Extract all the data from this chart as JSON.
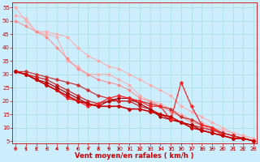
{
  "background_color": "#cceeff",
  "grid_color": "#aadddd",
  "xlabel": "Vent moyen/en rafales ( km/h )",
  "xlabel_color": "#cc0000",
  "xlabel_fontsize": 6,
  "tick_color": "#cc0000",
  "tick_fontsize": 5,
  "yticks": [
    5,
    10,
    15,
    20,
    25,
    30,
    35,
    40,
    45,
    50,
    55
  ],
  "xticks": [
    0,
    1,
    2,
    3,
    4,
    5,
    6,
    7,
    8,
    9,
    10,
    11,
    12,
    13,
    14,
    15,
    16,
    17,
    18,
    19,
    20,
    21,
    22,
    23
  ],
  "xlim": [
    -0.3,
    23.3
  ],
  "ylim": [
    4,
    57
  ],
  "lines": [
    {
      "x": [
        0,
        1,
        2,
        3,
        4,
        5,
        6,
        7,
        8,
        9,
        10,
        11,
        12,
        13,
        14,
        15,
        16,
        17,
        18,
        19,
        20,
        21,
        22,
        23
      ],
      "y": [
        55,
        50,
        46,
        46,
        45,
        44,
        40,
        37,
        35,
        33,
        32,
        30,
        28,
        26,
        24,
        22,
        18,
        16,
        14,
        12,
        10,
        8,
        7,
        6
      ],
      "color": "#ffaaaa",
      "lw": 0.7,
      "marker": "D",
      "ms": 1.5
    },
    {
      "x": [
        0,
        1,
        2,
        3,
        4,
        5,
        6,
        7,
        8,
        9,
        10,
        11,
        12,
        13,
        14,
        15,
        16,
        17,
        18,
        19,
        20,
        21,
        22,
        23
      ],
      "y": [
        52,
        51,
        46,
        45,
        44,
        35,
        33,
        30,
        30,
        30,
        28,
        26,
        22,
        20,
        19,
        17,
        15,
        13,
        12,
        10,
        9,
        8,
        7,
        6
      ],
      "color": "#ffaaaa",
      "lw": 0.7,
      "marker": "D",
      "ms": 1.5
    },
    {
      "x": [
        0,
        1,
        2,
        3,
        4,
        5,
        6,
        7,
        8,
        9,
        10,
        11,
        12,
        13,
        14,
        15,
        16,
        17,
        18,
        19,
        20,
        21,
        22,
        23
      ],
      "y": [
        50,
        48,
        46,
        44,
        40,
        36,
        32,
        30,
        28,
        27,
        26,
        24,
        21,
        20,
        18,
        16,
        14,
        12,
        11,
        9,
        8,
        7,
        6,
        5
      ],
      "color": "#ff8888",
      "lw": 0.7,
      "marker": "D",
      "ms": 1.5
    },
    {
      "x": [
        0,
        1,
        2,
        3,
        4,
        5,
        6,
        7,
        8,
        9,
        10,
        11,
        12,
        13,
        14,
        15,
        16,
        17,
        18,
        19,
        20,
        21,
        22,
        23
      ],
      "y": [
        31,
        31,
        30,
        29,
        28,
        27,
        26,
        24,
        22,
        21,
        20,
        20,
        20,
        19,
        18,
        17,
        14,
        13,
        11,
        10,
        8,
        7,
        6,
        5
      ],
      "color": "#cc3333",
      "lw": 0.9,
      "marker": "D",
      "ms": 1.8
    },
    {
      "x": [
        0,
        1,
        2,
        3,
        4,
        5,
        6,
        7,
        8,
        9,
        10,
        11,
        12,
        13,
        14,
        15,
        16,
        17,
        18,
        19,
        20,
        21,
        22,
        23
      ],
      "y": [
        31,
        30,
        29,
        28,
        26,
        24,
        22,
        20,
        19,
        20,
        20,
        20,
        18,
        17,
        15,
        13,
        12,
        11,
        10,
        9,
        8,
        7,
        6,
        5
      ],
      "color": "#cc2222",
      "lw": 0.9,
      "marker": "D",
      "ms": 1.8
    },
    {
      "x": [
        0,
        1,
        2,
        3,
        4,
        5,
        6,
        7,
        8,
        9,
        10,
        11,
        12,
        13,
        14,
        15,
        16,
        17,
        18,
        19,
        20,
        21,
        22,
        23
      ],
      "y": [
        31,
        30,
        28,
        27,
        25,
        23,
        21,
        19,
        18,
        20,
        21,
        21,
        19,
        17,
        14,
        13,
        12,
        11,
        9,
        8,
        7,
        6,
        6,
        5
      ],
      "color": "#aa0000",
      "lw": 0.9,
      "marker": "D",
      "ms": 1.8
    },
    {
      "x": [
        0,
        1,
        2,
        3,
        4,
        5,
        6,
        7,
        8,
        9,
        10,
        11,
        12,
        13,
        14,
        15,
        16,
        17,
        18,
        19,
        20,
        21,
        22,
        23
      ],
      "y": [
        31,
        30,
        28,
        26,
        24,
        21,
        20,
        18,
        19,
        21,
        22,
        21,
        20,
        18,
        18,
        13,
        27,
        18,
        11,
        10,
        7,
        6,
        6,
        5
      ],
      "color": "#ff2222",
      "lw": 0.9,
      "marker": "D",
      "ms": 1.8
    },
    {
      "x": [
        0,
        1,
        2,
        3,
        4,
        5,
        6,
        7,
        8,
        9,
        10,
        11,
        12,
        13,
        14,
        15,
        16,
        17,
        18,
        19,
        20,
        21,
        22,
        23
      ],
      "y": [
        31,
        30,
        28,
        26,
        24,
        22,
        20,
        19,
        18,
        18,
        18,
        17,
        17,
        16,
        15,
        14,
        12,
        10,
        9,
        8,
        7,
        6,
        6,
        5
      ],
      "color": "#cc0000",
      "lw": 1.2,
      "marker": "D",
      "ms": 2.0
    }
  ]
}
